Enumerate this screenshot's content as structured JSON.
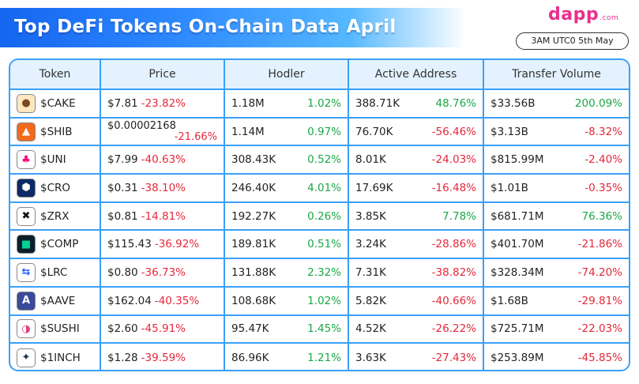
{
  "header": {
    "title": "Top DeFi Tokens On-Chain Data April",
    "brand": "dapp",
    "brand_suffix": ".com",
    "timestamp": "3AM UTC0 5th May"
  },
  "columns": [
    "Token",
    "Price",
    "Hodler",
    "Active Address",
    "Transfer Volume"
  ],
  "colors": {
    "positive": "#1aa845",
    "negative": "#e5283a",
    "border": "#3aa0f8",
    "header_bg": "#e3f2fe"
  },
  "rows": [
    {
      "token": "$CAKE",
      "icon": "pancake-icon",
      "price": "$7.81",
      "price_chg": "-23.82%",
      "hodler": "1.18M",
      "hodler_chg": "1.02%",
      "active": "388.71K",
      "active_chg": "48.76%",
      "volume": "$33.56B",
      "volume_chg": "200.09%"
    },
    {
      "token": "$SHIB",
      "icon": "shiba-icon",
      "price": "$0.00002168",
      "price_chg": "-21.66%",
      "hodler": "1.14M",
      "hodler_chg": "0.97%",
      "active": "76.70K",
      "active_chg": "-56.46%",
      "volume": "$3.13B",
      "volume_chg": "-8.32%"
    },
    {
      "token": "$UNI",
      "icon": "unicorn-icon",
      "price": "$7.99",
      "price_chg": "-40.63%",
      "hodler": "308.43K",
      "hodler_chg": "0.52%",
      "active": "8.01K",
      "active_chg": "-24.03%",
      "volume": "$815.99M",
      "volume_chg": "-2.40%"
    },
    {
      "token": "$CRO",
      "icon": "cro-icon",
      "price": "$0.31",
      "price_chg": "-38.10%",
      "hodler": "246.40K",
      "hodler_chg": "4.01%",
      "active": "17.69K",
      "active_chg": "-16.48%",
      "volume": "$1.01B",
      "volume_chg": "-0.35%"
    },
    {
      "token": "$ZRX",
      "icon": "zrx-icon",
      "price": "$0.81",
      "price_chg": "-14.81%",
      "hodler": "192.27K",
      "hodler_chg": "0.26%",
      "active": "3.85K",
      "active_chg": "7.78%",
      "volume": "$681.71M",
      "volume_chg": "76.36%"
    },
    {
      "token": "$COMP",
      "icon": "compound-icon",
      "price": "$115.43",
      "price_chg": "-36.92%",
      "hodler": "189.81K",
      "hodler_chg": "0.51%",
      "active": "3.24K",
      "active_chg": "-28.86%",
      "volume": "$401.70M",
      "volume_chg": "-21.86%"
    },
    {
      "token": "$LRC",
      "icon": "loopring-icon",
      "price": "$0.80",
      "price_chg": "-36.73%",
      "hodler": "131.88K",
      "hodler_chg": "2.32%",
      "active": "7.31K",
      "active_chg": "-38.82%",
      "volume": "$328.34M",
      "volume_chg": "-74.20%"
    },
    {
      "token": "$AAVE",
      "icon": "aave-icon",
      "price": "$162.04",
      "price_chg": "-40.35%",
      "hodler": "108.68K",
      "hodler_chg": "1.02%",
      "active": "5.82K",
      "active_chg": "-40.66%",
      "volume": "$1.68B",
      "volume_chg": "-29.81%"
    },
    {
      "token": "$SUSHI",
      "icon": "sushi-icon",
      "price": "$2.60",
      "price_chg": "-45.91%",
      "hodler": "95.47K",
      "hodler_chg": "1.45%",
      "active": "4.52K",
      "active_chg": "-26.22%",
      "volume": "$725.71M",
      "volume_chg": "-22.03%"
    },
    {
      "token": "$1INCH",
      "icon": "oneinch-icon",
      "price": "$1.28",
      "price_chg": "-39.59%",
      "hodler": "86.96K",
      "hodler_chg": "1.21%",
      "active": "3.63K",
      "active_chg": "-27.43%",
      "volume": "$253.89M",
      "volume_chg": "-45.85%"
    }
  ]
}
